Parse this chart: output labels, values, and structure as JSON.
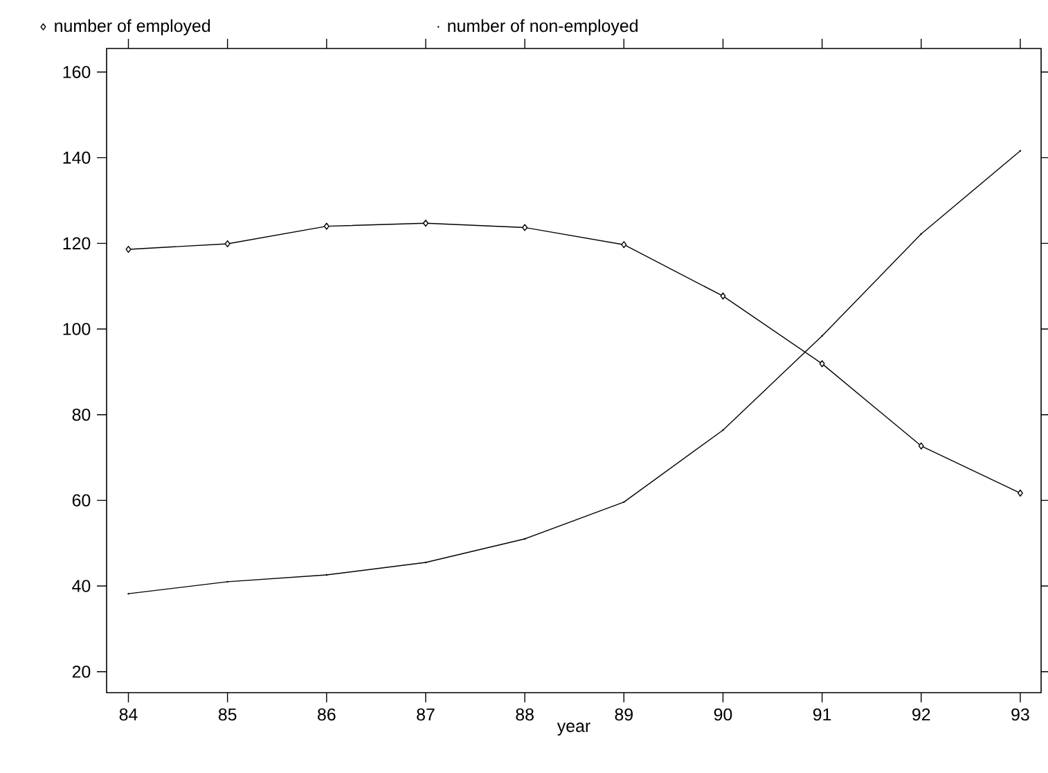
{
  "chart_data": {
    "type": "line",
    "xlabel": "year",
    "x": [
      84,
      85,
      86,
      87,
      88,
      89,
      90,
      91,
      92,
      93
    ],
    "series": [
      {
        "name": "number of employed",
        "color": "#000000",
        "marker": "diamond",
        "line_style": "solid",
        "values": [
          118.6,
          119.9,
          124.0,
          124.7,
          123.7,
          119.7,
          107.7,
          91.9,
          72.7,
          61.7
        ]
      },
      {
        "name": "number of non-employed",
        "color": "#000000",
        "marker": "none",
        "line_style": "solid",
        "values": [
          38.2,
          41.0,
          42.6,
          45.5,
          51.0,
          59.6,
          76.4,
          98.4,
          122.2,
          141.6
        ]
      }
    ],
    "xlim": [
      83.78,
      93.21
    ],
    "ylim": [
      15.1,
      165.5
    ],
    "xticks": [
      84,
      85,
      86,
      87,
      88,
      89,
      90,
      91,
      92,
      93
    ],
    "yticks": [
      20,
      40,
      60,
      80,
      100,
      120,
      140,
      160
    ],
    "grid": false,
    "legend": "top"
  }
}
